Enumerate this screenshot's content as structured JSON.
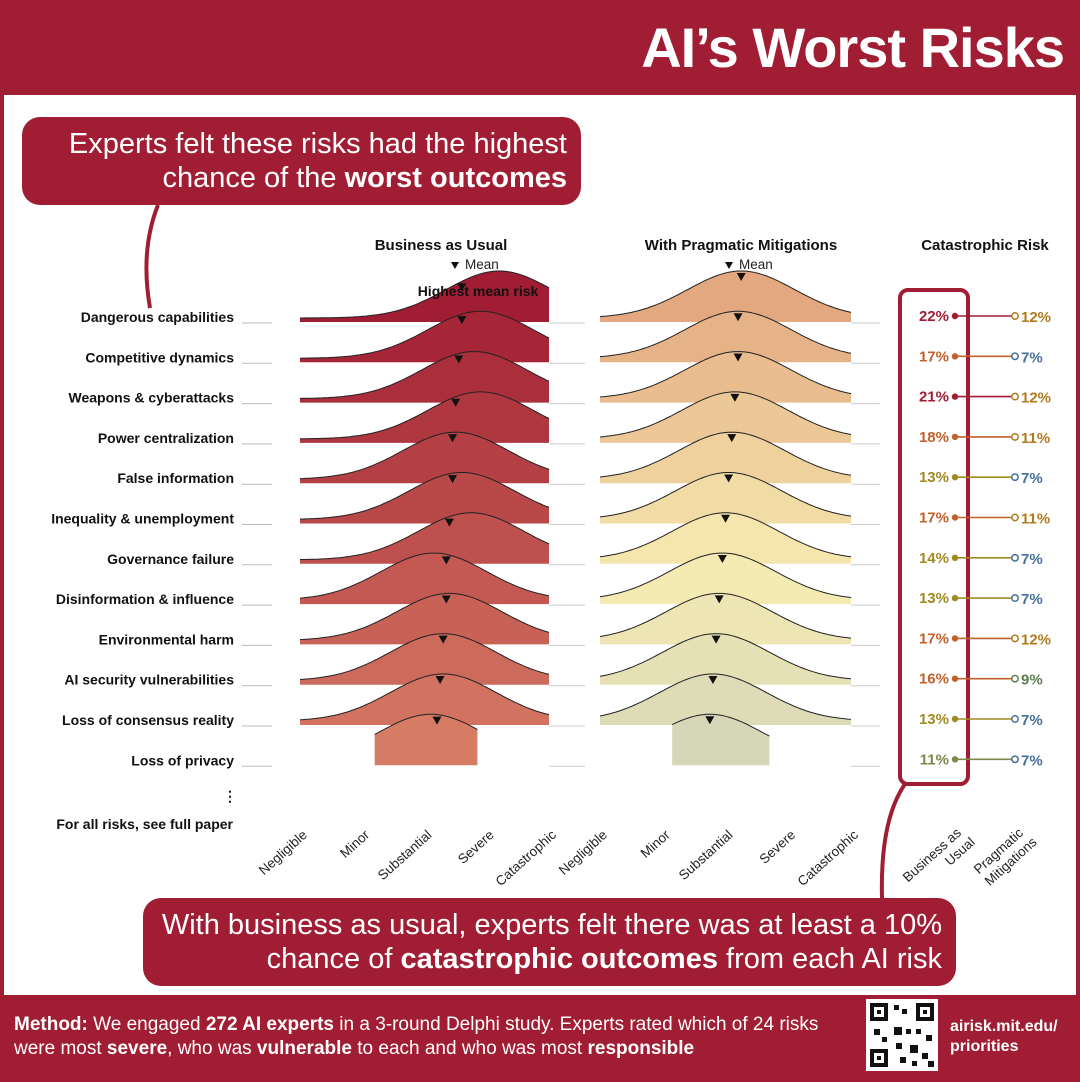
{
  "header": {
    "title": "AI’s Worst Risks"
  },
  "callout_top": {
    "line1": "Experts felt these risks had the highest",
    "line2_plain": "chance of the ",
    "line2_bold": "worst outcomes"
  },
  "callout_bottom": {
    "line1": "With business as usual, experts felt there was at least a 10%",
    "line2_plain1": "chance of ",
    "line2_bold": "catastrophic outcomes",
    "line2_plain2": " from each AI risk"
  },
  "footer": {
    "method_label": "Method:",
    "t1": " We engaged ",
    "b1": "272 AI experts",
    "t2": " in a 3-round Delphi study. Experts rated which of 24 risks were most ",
    "b2": "severe",
    "t3": ", who was ",
    "b3": "vulnerable",
    "t4": " to each and who was most ",
    "b4": "responsible",
    "url_line1": "airisk.mit.edu/",
    "url_line2": "priorities"
  },
  "chart_data": {
    "type": "ridgeline",
    "panels": [
      {
        "title": "Business as Usual",
        "mean_label": "Mean",
        "annotation": "Highest mean risk"
      },
      {
        "title": "With Pragmatic Mitigations",
        "mean_label": "Mean"
      }
    ],
    "x_ticks": [
      "Negligible",
      "Minor",
      "Substantial",
      "Severe",
      "Catastrophic"
    ],
    "catastrophic_title": "Catastrophic Risk",
    "catastrophic_axis": [
      "Business as Usual",
      "Pragmatic Mitigations"
    ],
    "more_indicator": "⋮",
    "more_label": "For all risks, see full paper",
    "colors": {
      "bau": "#a11d33",
      "accent": "#a11d33"
    },
    "risks": [
      {
        "name": "Dangerous capabilities",
        "bau_mean": 2.6,
        "bau_peak": 3.2,
        "mit_mean": 2.25,
        "bau_pct": "22%",
        "mit_pct": "12%"
      },
      {
        "name": "Competitive dynamics",
        "bau_mean": 2.6,
        "bau_peak": 2.9,
        "mit_mean": 2.2,
        "bau_pct": "17%",
        "mit_pct": "7%"
      },
      {
        "name": "Weapons & cyberattacks",
        "bau_mean": 2.55,
        "bau_peak": 2.8,
        "mit_mean": 2.2,
        "bau_pct": "21%",
        "mit_pct": "12%"
      },
      {
        "name": "Power centralization",
        "bau_mean": 2.5,
        "bau_peak": 2.9,
        "mit_mean": 2.15,
        "bau_pct": "18%",
        "mit_pct": "11%"
      },
      {
        "name": "False information",
        "bau_mean": 2.45,
        "bau_peak": 2.5,
        "mit_mean": 2.1,
        "bau_pct": "13%",
        "mit_pct": "7%"
      },
      {
        "name": "Inequality & unemployment",
        "bau_mean": 2.45,
        "bau_peak": 2.6,
        "mit_mean": 2.05,
        "bau_pct": "17%",
        "mit_pct": "11%"
      },
      {
        "name": "Governance failure",
        "bau_mean": 2.4,
        "bau_peak": 2.75,
        "mit_mean": 2.0,
        "bau_pct": "14%",
        "mit_pct": "7%"
      },
      {
        "name": "Disinformation & influence",
        "bau_mean": 2.35,
        "bau_peak": 2.15,
        "mit_mean": 1.95,
        "bau_pct": "13%",
        "mit_pct": "7%"
      },
      {
        "name": "Environmental harm",
        "bau_mean": 2.35,
        "bau_peak": 2.4,
        "mit_mean": 1.9,
        "bau_pct": "17%",
        "mit_pct": "12%"
      },
      {
        "name": "AI security vulnerabilities",
        "bau_mean": 2.3,
        "bau_peak": 2.3,
        "mit_mean": 1.85,
        "bau_pct": "16%",
        "mit_pct": "9%"
      },
      {
        "name": "Loss of consensus reality",
        "bau_mean": 2.25,
        "bau_peak": 2.3,
        "mit_mean": 1.8,
        "bau_pct": "13%",
        "mit_pct": "7%"
      },
      {
        "name": "Loss of privacy",
        "bau_mean": 2.2,
        "bau_peak": 2.1,
        "mit_mean": 1.75,
        "bau_pct": "11%",
        "mit_pct": "7%"
      }
    ]
  }
}
